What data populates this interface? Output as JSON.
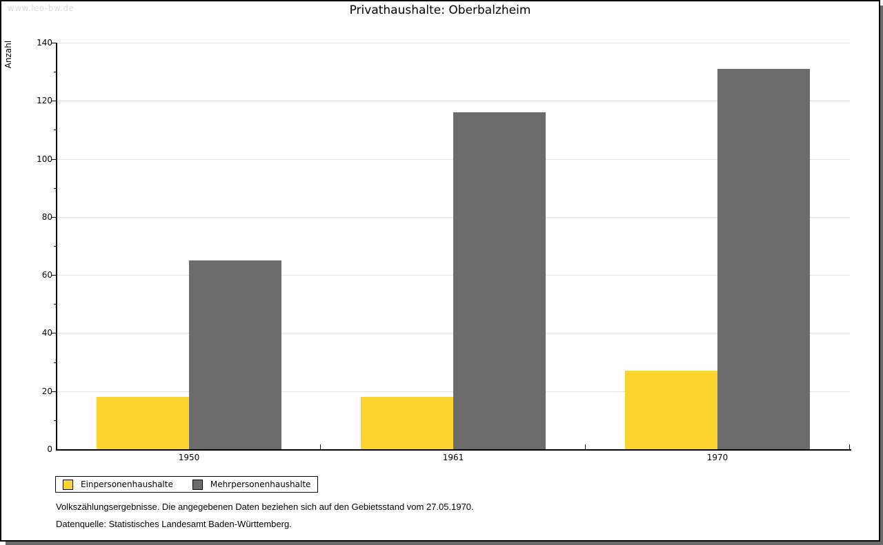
{
  "watermark": "www.leo-bw.de",
  "chart_data": {
    "type": "bar",
    "title": "Privathaushalte: Oberbalzheim",
    "ylabel": "Anzahl",
    "xlabel": "",
    "categories": [
      "1950",
      "1961",
      "1970"
    ],
    "series": [
      {
        "name": "Einpersonenhaushalte",
        "color": "#FCD42F",
        "values": [
          18,
          18,
          27
        ]
      },
      {
        "name": "Mehrpersonenhaushalte",
        "color": "#6C6C6C",
        "values": [
          65,
          116,
          131
        ]
      }
    ],
    "ylim": [
      0,
      140
    ],
    "ytick_step": 20,
    "yminor_step": 10,
    "grid": "horizontal",
    "legend_position": "bottom-left"
  },
  "footnotes": [
    "Volkszählungsergebnisse. Die angegebenen Daten beziehen sich auf den Gebietsstand vom 27.05.1970.",
    "Datenquelle: Statistisches Landesamt Baden-Württemberg."
  ],
  "colors": {
    "grid": "#E0E0E0",
    "axis": "#000000",
    "frame_shadow": "#6B6B6B",
    "watermark": "#DBDBDB"
  }
}
